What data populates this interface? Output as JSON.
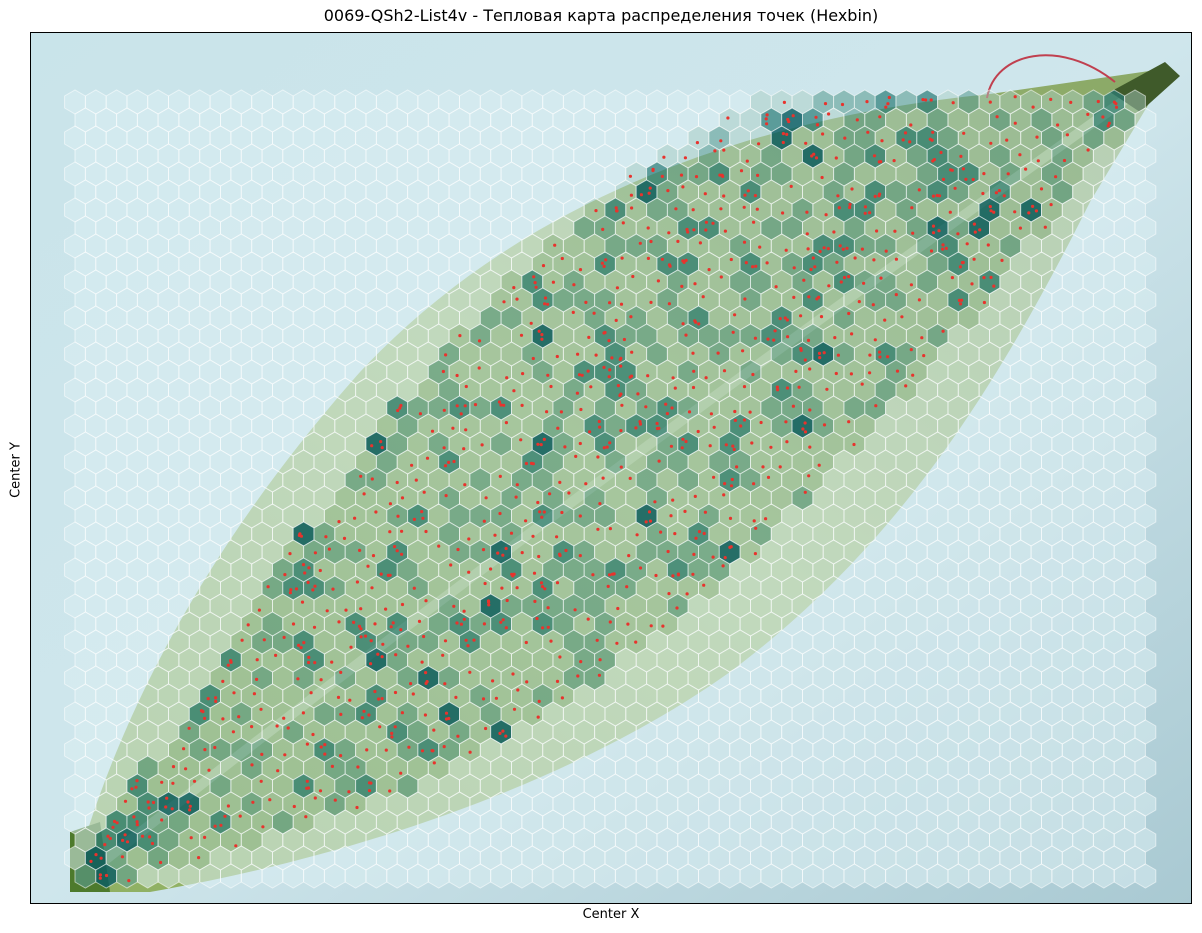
{
  "chart_data": {
    "type": "hexbin",
    "title": "0069-QSh2-List4v - Тепловая карта распределения точек (Hexbin)",
    "xlabel": "Center X",
    "ylabel": "Center Y",
    "xticks": [],
    "yticks": [],
    "grid": false,
    "background": "leaf photograph (green leaf on pale blue background)",
    "colormap": [
      "#dbeef3",
      "#a9cfc4",
      "#5e9e94",
      "#2b7d79",
      "#0c5e63"
    ],
    "hotspots": [
      {
        "x": 0.52,
        "y": 0.13,
        "count": 3
      },
      {
        "x": 0.59,
        "y": 0.22,
        "count": 3
      },
      {
        "x": 0.82,
        "y": 0.22,
        "count": 4
      },
      {
        "x": 0.87,
        "y": 0.34,
        "count": 3
      },
      {
        "x": 0.87,
        "y": 0.4,
        "count": 4
      },
      {
        "x": 0.51,
        "y": 0.38,
        "count": 3
      },
      {
        "x": 0.63,
        "y": 0.29,
        "count": 2
      },
      {
        "x": 0.7,
        "y": 0.2,
        "count": 3
      },
      {
        "x": 0.76,
        "y": 0.12,
        "count": 3
      },
      {
        "x": 0.8,
        "y": 0.45,
        "count": 2
      },
      {
        "x": 0.25,
        "y": 0.52,
        "count": 2
      },
      {
        "x": 0.48,
        "y": 0.65,
        "count": 2
      },
      {
        "x": 0.64,
        "y": 0.69,
        "count": 2
      },
      {
        "x": 0.3,
        "y": 0.95,
        "count": 2
      },
      {
        "x": 0.07,
        "y": 0.58,
        "count": 2
      }
    ],
    "point_color": "#e8332d"
  }
}
